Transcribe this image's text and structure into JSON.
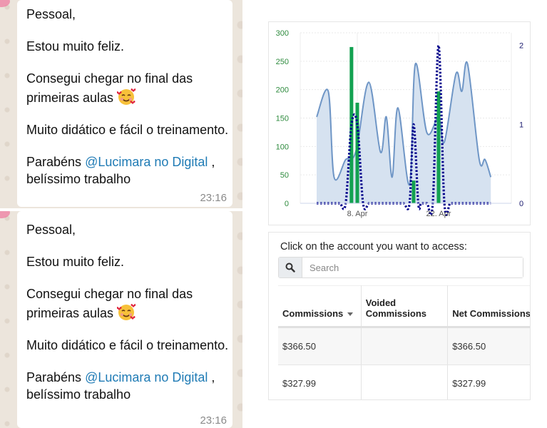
{
  "messages": [
    {
      "paragraphs": [
        "Pessoal,",
        "Estou muito feliz.",
        "Consegui chegar no final das primeiras aulas",
        "Muito didático e fácil o treinamento."
      ],
      "closing_prefix": "Parabéns ",
      "mention": "@Lucimara no Digital",
      "closing_suffix": " , belíssimo trabalho",
      "emoji": "smiling-face-with-hearts",
      "time": "23:16"
    },
    {
      "paragraphs": [
        "Pessoal,",
        "Estou muito feliz.",
        "Consegui chegar no final das primeiras aulas",
        "Muito didático e fácil o treinamento."
      ],
      "closing_prefix": "Parabéns ",
      "mention": "@Lucimara no Digital",
      "closing_suffix": " , belíssimo trabalho",
      "emoji": "smiling-face-with-hearts",
      "time": "23:16"
    }
  ],
  "chart_data": {
    "type": "line",
    "x_unit": "day of April",
    "x_ticks": [
      {
        "day": 8,
        "label": "8. Apr"
      },
      {
        "day": 22,
        "label": "22. Apr"
      }
    ],
    "y_left": {
      "ylim": [
        0,
        300
      ],
      "ticks": [
        "0",
        "50",
        "100",
        "150",
        "200",
        "250",
        "300"
      ],
      "color": "#2e8b3e"
    },
    "y_right": {
      "ylim": [
        0,
        2.16
      ],
      "ticks": [
        "0",
        "1",
        "2"
      ],
      "color": "#1a1a6e"
    },
    "grid": true,
    "series": [
      {
        "type": "area",
        "axis": "left",
        "color": "#6f96c6",
        "fill": "#d6e2f0",
        "x": [
          1,
          3,
          4,
          6,
          7,
          8,
          10,
          12,
          13,
          14,
          15,
          17,
          18,
          20,
          22,
          23,
          25,
          26,
          27,
          29,
          30,
          31
        ],
        "values": [
          152,
          197,
          46,
          77,
          77,
          102,
          213,
          90,
          152,
          46,
          168,
          33,
          245,
          124,
          152,
          108,
          228,
          197,
          245,
          77,
          77,
          46
        ]
      },
      {
        "type": "column",
        "axis": "left",
        "color": "#12a150",
        "x": [
          7,
          8,
          17.7,
          22
        ],
        "values": [
          275,
          177,
          40,
          197
        ]
      },
      {
        "type": "dotted-line",
        "axis": "right",
        "color": "#00008b",
        "x": [
          1,
          2,
          3,
          4,
          5,
          6,
          7,
          8,
          9,
          10,
          11,
          12,
          13,
          14,
          15,
          16,
          17,
          17.7,
          18.5,
          19,
          20,
          21,
          22,
          23,
          24,
          25,
          26,
          27,
          28,
          29,
          30,
          31
        ],
        "values": [
          0,
          0,
          0,
          0,
          0,
          0,
          1,
          1,
          0,
          0,
          0,
          0,
          0,
          0,
          0,
          0,
          0,
          1,
          0,
          0,
          0,
          0,
          2,
          0,
          0,
          0,
          0,
          0,
          0,
          0,
          0,
          0
        ]
      }
    ]
  },
  "accounts": {
    "prompt": "Click on the account you want to access:",
    "search_placeholder": "Search",
    "columns": [
      "Commissions",
      "Voided Commissions",
      "Net Commissions"
    ],
    "rows": [
      [
        "$366.50",
        "",
        "$366.50"
      ],
      [
        "$327.99",
        "",
        "$327.99"
      ]
    ]
  }
}
